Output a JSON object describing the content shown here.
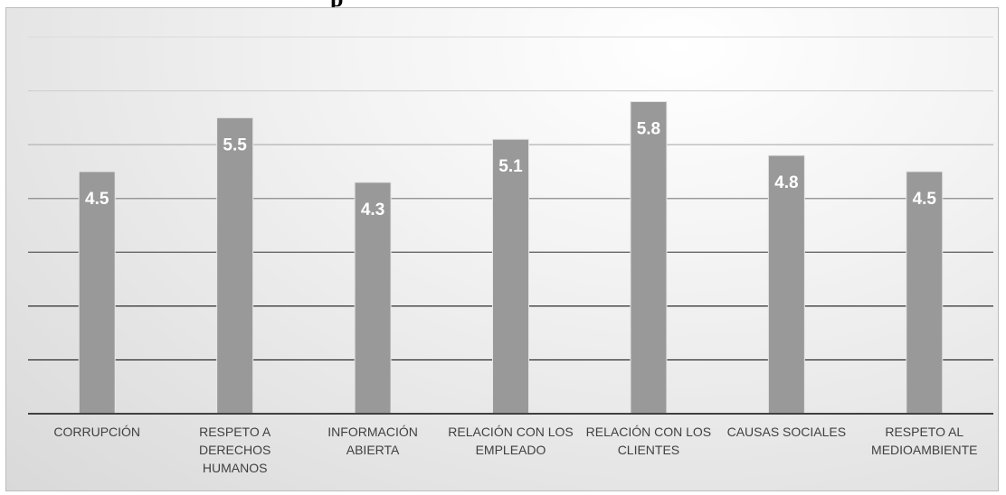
{
  "title_fragment": "p",
  "chart_data": {
    "type": "bar",
    "title": "",
    "xlabel": "",
    "ylabel": "",
    "ylim": [
      0,
      7
    ],
    "grid": true,
    "legend": "none",
    "categories": [
      [
        "CORRUPCIÓN"
      ],
      [
        "RESPETO A",
        "DERECHOS",
        "HUMANOS"
      ],
      [
        "INFORMACIÓN",
        "ABIERTA"
      ],
      [
        "RELACIÓN CON LOS",
        "EMPLEADO"
      ],
      [
        "RELACIÓN CON LOS",
        "CLIENTES"
      ],
      [
        "CAUSAS SOCIALES"
      ],
      [
        "RESPETO AL",
        "MEDIOAMBIENTE"
      ]
    ],
    "series": [
      {
        "values": [
          4.5,
          5.5,
          4.3,
          5.1,
          5.8,
          4.8,
          4.5
        ]
      }
    ],
    "data_labels": [
      "4.5",
      "5.5",
      "4.3",
      "5.1",
      "5.8",
      "4.8",
      "4.5"
    ],
    "colors": {
      "bar": "#999999",
      "bar_edge": "#e6e6e6",
      "label": "#ffffff",
      "axis": "#404040",
      "tick_text": "#404040"
    }
  }
}
